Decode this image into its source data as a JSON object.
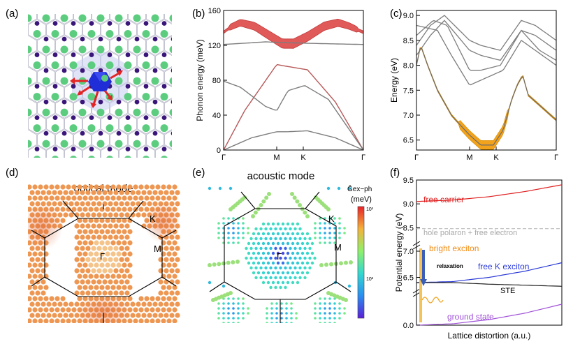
{
  "panel_labels": [
    "(a)",
    "(b)",
    "(c)",
    "(d)",
    "(e)",
    "(f)"
  ],
  "colors": {
    "red": "#e05a5a",
    "orange": "#f2a21b",
    "gray": "#7d7d7d",
    "atom_green": "#5ccc7f",
    "atom_purple": "#3b167a",
    "blue": "#1f2ed6",
    "dot_orange": "#ee9752"
  },
  "chart_data": [
    {
      "type": "line",
      "panel": "(b)",
      "title": "",
      "xlabel": "",
      "ylabel": "Phonon energy (meV)",
      "xticks": [
        "Γ",
        "M",
        "K",
        "Γ"
      ],
      "yticks": [
        "0",
        "40",
        "80",
        "120",
        "160"
      ],
      "ylim": [
        0,
        160
      ],
      "series": [
        {
          "name": "optical-upper",
          "x": [
            0,
            0.05,
            0.12,
            0.22,
            0.3,
            0.36,
            0.42,
            0.5,
            0.6,
            0.72,
            0.82,
            0.9,
            1.0
          ],
          "values": [
            135,
            141,
            146,
            142,
            134,
            128,
            122,
            122,
            130,
            142,
            146,
            142,
            135
          ]
        },
        {
          "name": "flat-optical",
          "x": [
            0,
            0.3,
            0.46,
            0.7,
            1.0
          ],
          "values": [
            121,
            124,
            123,
            122,
            121
          ]
        },
        {
          "name": "acoustic-1",
          "x": [
            0,
            0.15,
            0.38,
            0.45,
            0.6,
            0.8,
            1.0
          ],
          "values": [
            0,
            45,
            98,
            96,
            92,
            55,
            0
          ]
        },
        {
          "name": "acoustic-2",
          "x": [
            0,
            0.12,
            0.3,
            0.38,
            0.46,
            0.58,
            0.75,
            1.0
          ],
          "values": [
            79,
            72,
            50,
            45,
            68,
            74,
            58,
            0
          ]
        },
        {
          "name": "acoustic-3",
          "x": [
            0,
            0.2,
            0.38,
            0.46,
            0.6,
            0.8,
            1.0
          ],
          "values": [
            0,
            14,
            21,
            21,
            22,
            14,
            0
          ]
        }
      ]
    },
    {
      "type": "line",
      "panel": "(c)",
      "title": "",
      "xlabel": "",
      "ylabel": "Energy (eV)",
      "xticks": [
        "Γ",
        "M",
        "K",
        "Γ"
      ],
      "yticks": [
        "6.5",
        "7.0",
        "7.5",
        "8.0",
        "8.5",
        "9.0"
      ],
      "ylim": [
        6.3,
        9.1
      ],
      "series": [
        {
          "name": "exciton-lowest",
          "x": [
            0,
            0.03,
            0.08,
            0.15,
            0.25,
            0.33,
            0.38,
            0.46,
            0.55,
            0.62,
            0.68,
            0.72,
            0.76,
            0.8,
            1.0
          ],
          "values": [
            8.0,
            8.4,
            8.0,
            7.5,
            7.0,
            6.75,
            6.6,
            6.4,
            6.4,
            6.7,
            7.3,
            7.6,
            7.8,
            7.4,
            6.9
          ]
        },
        {
          "name": "band-2",
          "x": [
            0,
            0.1,
            0.2,
            0.38,
            0.46,
            0.6,
            0.75,
            0.85,
            1.0
          ],
          "values": [
            8.2,
            8.6,
            8.9,
            8.3,
            8.2,
            8.1,
            8.7,
            8.6,
            8.3
          ]
        },
        {
          "name": "band-3",
          "x": [
            0,
            0.1,
            0.2,
            0.38,
            0.46,
            0.6,
            0.75,
            0.85,
            1.0
          ],
          "values": [
            8.4,
            8.8,
            9.0,
            8.5,
            8.4,
            8.3,
            8.9,
            8.8,
            8.5
          ]
        },
        {
          "name": "band-4",
          "x": [
            0,
            0.12,
            0.22,
            0.38,
            0.46,
            0.6,
            0.75,
            0.88,
            1.0
          ],
          "values": [
            8.6,
            8.9,
            8.8,
            7.9,
            7.9,
            8.0,
            8.7,
            8.3,
            8.1
          ]
        },
        {
          "name": "band-5",
          "x": [
            0,
            0.15,
            0.25,
            0.38,
            0.46,
            0.62,
            0.75,
            0.9,
            1.0
          ],
          "values": [
            8.8,
            8.7,
            8.2,
            7.6,
            7.7,
            7.9,
            8.5,
            8.2,
            8.0
          ]
        }
      ]
    },
    {
      "type": "line",
      "panel": "(f)",
      "title": "",
      "xlabel": "Lattice distortion (a.u.)",
      "ylabel": "Potential energy (eV)",
      "yticks": [
        "0.0",
        "6.5",
        "7.0",
        "8.5",
        "9.0",
        "9.5"
      ],
      "series": [
        {
          "name": "free carrier",
          "x": [
            0,
            0.25,
            0.5,
            0.75,
            1.0
          ],
          "values": [
            9.05,
            9.08,
            9.15,
            9.26,
            9.4
          ]
        },
        {
          "name": "hole polaron + free electron",
          "x": [
            0,
            1.0
          ],
          "values": [
            8.48,
            8.48
          ]
        },
        {
          "name": "free K exciton",
          "x": [
            0,
            0.25,
            0.5,
            0.75,
            1.0
          ],
          "values": [
            6.4,
            6.42,
            6.5,
            6.62,
            6.78
          ]
        },
        {
          "name": "STE",
          "x": [
            0,
            0.25,
            0.5,
            0.75,
            1.0
          ],
          "values": [
            6.4,
            6.4,
            6.37,
            6.35,
            6.33
          ]
        },
        {
          "name": "ground state",
          "x": [
            0,
            0.25,
            0.5,
            0.75,
            1.0
          ],
          "values": [
            0,
            0.03,
            0.12,
            0.26,
            0.45
          ]
        }
      ]
    }
  ],
  "panel_e": {
    "colorbar_label": "Ĝex−ph",
    "colorbar_unit": "(meV)",
    "colorbar_max": "10³",
    "colorbar_mid": "10²"
  },
  "text": {
    "optical_mode": "optical mode",
    "acoustic_mode": "acoustic mode",
    "gamma": "Γ",
    "k": "K",
    "m": "M",
    "free_carrier": "free carrier",
    "hole_polaron": "hole polaron + free electron",
    "bright_exciton": "bright exciton",
    "relaxation": "relaxation",
    "free_k_exciton": "free K exciton",
    "ste": "STE",
    "ground_state": "ground state"
  }
}
